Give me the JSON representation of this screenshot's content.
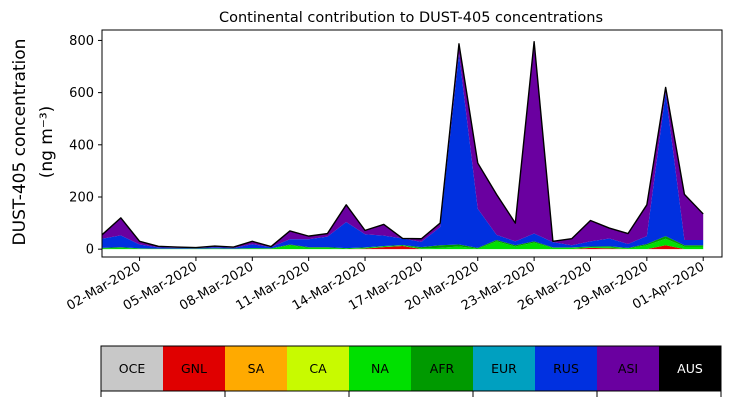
{
  "chart_data": {
    "type": "area",
    "stacked": true,
    "title": "Continental contribution to DUST-405 concentrations",
    "ylabel_line1": "DUST-405 concentration",
    "ylabel_line2": "(ng m⁻³)",
    "xlabel": "",
    "ylim": [
      -30,
      840
    ],
    "yticks": [
      0,
      200,
      400,
      600,
      800
    ],
    "grid": false,
    "x": [
      "2020-02-29",
      "2020-03-01",
      "2020-03-02",
      "2020-03-03",
      "2020-03-04",
      "2020-03-05",
      "2020-03-06",
      "2020-03-07",
      "2020-03-08",
      "2020-03-09",
      "2020-03-10",
      "2020-03-11",
      "2020-03-12",
      "2020-03-13",
      "2020-03-14",
      "2020-03-15",
      "2020-03-16",
      "2020-03-17",
      "2020-03-18",
      "2020-03-19",
      "2020-03-20",
      "2020-03-21",
      "2020-03-22",
      "2020-03-23",
      "2020-03-24",
      "2020-03-25",
      "2020-03-26",
      "2020-03-27",
      "2020-03-28",
      "2020-03-29",
      "2020-03-30",
      "2020-03-31",
      "2020-04-01"
    ],
    "xlim": [
      "2020-02-29",
      "2020-04-02"
    ],
    "xticks": [
      "2020-03-02",
      "2020-03-05",
      "2020-03-08",
      "2020-03-11",
      "2020-03-14",
      "2020-03-17",
      "2020-03-20",
      "2020-03-23",
      "2020-03-26",
      "2020-03-29",
      "2020-04-01"
    ],
    "xtick_labels": [
      "02-Mar-2020",
      "05-Mar-2020",
      "08-Mar-2020",
      "11-Mar-2020",
      "14-Mar-2020",
      "17-Mar-2020",
      "20-Mar-2020",
      "23-Mar-2020",
      "26-Mar-2020",
      "29-Mar-2020",
      "01-Apr-2020"
    ],
    "series": [
      {
        "name": "OCE",
        "color": "#c8c8c8",
        "values": [
          0,
          0,
          0,
          0,
          0,
          0,
          0,
          0,
          0,
          0,
          0,
          0,
          0,
          0,
          0,
          0,
          0,
          0,
          0,
          0,
          0,
          0,
          0,
          0,
          0,
          0,
          0,
          0,
          0,
          0,
          0,
          0,
          0
        ]
      },
      {
        "name": "GNL",
        "color": "#e00000",
        "values": [
          0,
          0,
          0,
          0,
          0,
          0,
          0,
          0,
          0,
          0,
          0,
          0,
          0,
          0,
          2,
          8,
          12,
          0,
          0,
          0,
          0,
          0,
          0,
          0,
          0,
          0,
          5,
          3,
          0,
          0,
          15,
          0,
          0
        ]
      },
      {
        "name": "SA",
        "color": "#ffaa00",
        "values": [
          0,
          0,
          0,
          0,
          0,
          0,
          0,
          0,
          0,
          0,
          0,
          0,
          0,
          0,
          0,
          0,
          0,
          0,
          0,
          0,
          0,
          0,
          0,
          0,
          0,
          0,
          0,
          0,
          0,
          0,
          0,
          0,
          0
        ]
      },
      {
        "name": "CA",
        "color": "#c8fa00",
        "values": [
          0,
          0,
          0,
          0,
          0,
          0,
          0,
          0,
          0,
          0,
          0,
          0,
          0,
          0,
          0,
          0,
          0,
          0,
          0,
          0,
          0,
          0,
          0,
          0,
          0,
          0,
          0,
          0,
          0,
          0,
          0,
          0,
          0
        ]
      },
      {
        "name": "NA",
        "color": "#00e000",
        "values": [
          3,
          5,
          2,
          1,
          1,
          1,
          2,
          1,
          3,
          2,
          15,
          5,
          5,
          2,
          3,
          2,
          2,
          3,
          5,
          10,
          2,
          30,
          10,
          25,
          5,
          5,
          3,
          5,
          3,
          15,
          25,
          10,
          10
        ]
      },
      {
        "name": "AFR",
        "color": "#009a00",
        "values": [
          2,
          3,
          1,
          1,
          1,
          1,
          1,
          1,
          1,
          1,
          3,
          3,
          3,
          2,
          2,
          2,
          2,
          5,
          10,
          8,
          3,
          5,
          5,
          5,
          2,
          2,
          2,
          3,
          2,
          5,
          10,
          5,
          5
        ]
      },
      {
        "name": "EUR",
        "color": "#00a0c0",
        "values": [
          0,
          0,
          0,
          0,
          0,
          0,
          0,
          0,
          0,
          0,
          0,
          0,
          0,
          0,
          0,
          0,
          0,
          0,
          0,
          0,
          0,
          0,
          0,
          0,
          0,
          0,
          0,
          0,
          0,
          0,
          0,
          0,
          0
        ]
      },
      {
        "name": "RUS",
        "color": "#0030e0",
        "values": [
          35,
          45,
          15,
          5,
          3,
          2,
          5,
          3,
          15,
          5,
          20,
          30,
          40,
          100,
          50,
          40,
          25,
          20,
          70,
          730,
          150,
          20,
          15,
          30,
          20,
          8,
          20,
          30,
          15,
          30,
          550,
          20,
          20
        ]
      },
      {
        "name": "ASI",
        "color": "#6a00a0",
        "values": [
          15,
          67,
          12,
          4,
          3,
          2,
          4,
          3,
          11,
          2,
          32,
          12,
          12,
          66,
          15,
          43,
          0,
          12,
          15,
          39,
          175,
          155,
          70,
          735,
          3,
          25,
          80,
          40,
          40,
          120,
          20,
          175,
          100
        ]
      },
      {
        "name": "AUS",
        "color": "#000000",
        "values": [
          0,
          0,
          0,
          0,
          0,
          0,
          0,
          0,
          0,
          0,
          0,
          0,
          0,
          0,
          0,
          0,
          0,
          0,
          0,
          0,
          0,
          0,
          0,
          0,
          0,
          0,
          0,
          0,
          0,
          0,
          0,
          0,
          0
        ]
      }
    ],
    "legend": [
      {
        "label": "OCE",
        "color": "#c8c8c8",
        "text_color": "#000000"
      },
      {
        "label": "GNL",
        "color": "#e00000",
        "text_color": "#000000"
      },
      {
        "label": "SA",
        "color": "#ffaa00",
        "text_color": "#000000"
      },
      {
        "label": "CA",
        "color": "#c8fa00",
        "text_color": "#000000"
      },
      {
        "label": "NA",
        "color": "#00e000",
        "text_color": "#000000"
      },
      {
        "label": "AFR",
        "color": "#009a00",
        "text_color": "#000000"
      },
      {
        "label": "EUR",
        "color": "#00a0c0",
        "text_color": "#000000"
      },
      {
        "label": "RUS",
        "color": "#0030e0",
        "text_color": "#000000"
      },
      {
        "label": "ASI",
        "color": "#6a00a0",
        "text_color": "#000000"
      },
      {
        "label": "AUS",
        "color": "#000000",
        "text_color": "#ffffff"
      }
    ],
    "legend_placement": "bottom"
  }
}
